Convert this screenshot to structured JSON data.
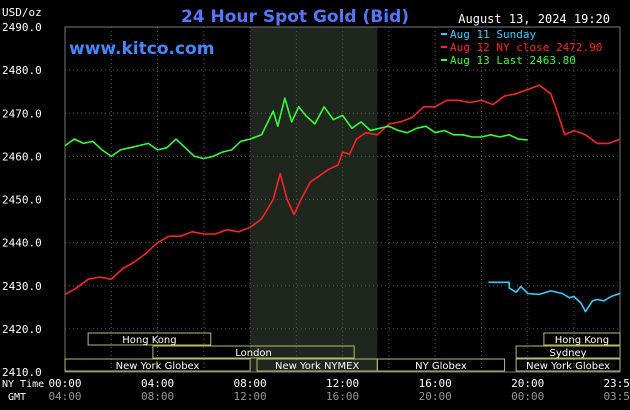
{
  "chart_data": {
    "type": "line",
    "title": "24 Hour Spot Gold (Bid)",
    "unit_label": "USD/oz",
    "timestamp": "August 13, 2024 19:20",
    "brand": "www.kitco.com",
    "ylim": [
      2410,
      2490
    ],
    "y_ticks": [
      "2490.0",
      "2480.0",
      "2470.0",
      "2460.0",
      "2450.0",
      "2440.0",
      "2430.0",
      "2420.0",
      "2410.0"
    ],
    "x_ticks_ny": [
      "00:00",
      "04:00",
      "08:00",
      "12:00",
      "16:00",
      "20:00",
      "23:59"
    ],
    "x_ticks_gmt": [
      "04:00",
      "08:00",
      "12:00",
      "16:00",
      "20:00",
      "00:00",
      "03:59"
    ],
    "ny_time_label": "NY Time",
    "gmt_label": "GMT",
    "grid": true,
    "legend_position": "top-right",
    "series": [
      {
        "name": "Aug 11 Sunday",
        "color": "#33ccff",
        "x": [
          18.3,
          19.2,
          19.2,
          19.5,
          19.7,
          20.0,
          20.5,
          21.0,
          21.5,
          21.8,
          22.0,
          22.3,
          22.5,
          22.8,
          23.0,
          23.3,
          23.6,
          23.99
        ],
        "y": [
          2430.8,
          2430.8,
          2429.5,
          2428.5,
          2429.8,
          2428.2,
          2428.0,
          2428.8,
          2428.2,
          2427.2,
          2427.5,
          2426.0,
          2424.0,
          2426.5,
          2426.8,
          2426.5,
          2427.5,
          2428.2
        ]
      },
      {
        "name": "Aug 12 NY close 2472.90",
        "color": "#ff2222",
        "x": [
          0.0,
          0.5,
          1.0,
          1.5,
          2.0,
          2.5,
          3.0,
          3.5,
          4.0,
          4.5,
          5.0,
          5.5,
          6.0,
          6.5,
          7.0,
          7.5,
          8.0,
          8.5,
          9.0,
          9.3,
          9.6,
          9.9,
          10.2,
          10.6,
          11.0,
          11.4,
          11.8,
          12.0,
          12.3,
          12.6,
          13.0,
          13.5,
          14.0,
          14.5,
          15.0,
          15.5,
          16.0,
          16.5,
          17.0,
          17.5,
          18.0,
          18.5,
          19.0,
          19.5,
          20.0,
          20.5,
          21.0,
          21.3,
          21.6,
          22.0,
          22.5,
          23.0,
          23.5,
          23.99
        ],
        "y": [
          2428.0,
          2429.5,
          2431.5,
          2432.0,
          2431.5,
          2434.0,
          2435.5,
          2437.5,
          2440.0,
          2441.5,
          2441.5,
          2442.5,
          2442.0,
          2442.0,
          2443.0,
          2442.5,
          2443.5,
          2445.5,
          2450.0,
          2456.0,
          2450.0,
          2446.5,
          2450.0,
          2454.0,
          2455.5,
          2457.0,
          2458.0,
          2461.0,
          2460.5,
          2464.0,
          2465.5,
          2465.0,
          2467.5,
          2468.0,
          2469.0,
          2471.5,
          2471.5,
          2473.0,
          2473.0,
          2472.5,
          2473.0,
          2472.0,
          2474.0,
          2474.5,
          2475.5,
          2476.5,
          2474.5,
          2470.0,
          2465.0,
          2466.0,
          2465.0,
          2463.0,
          2463.0,
          2464.0
        ]
      },
      {
        "name": "Aug 13 Last 2463.80",
        "color": "#33ff33",
        "x": [
          0.0,
          0.4,
          0.8,
          1.2,
          1.6,
          2.0,
          2.4,
          2.8,
          3.2,
          3.6,
          4.0,
          4.4,
          4.8,
          5.2,
          5.6,
          6.0,
          6.4,
          6.8,
          7.2,
          7.6,
          8.0,
          8.5,
          9.0,
          9.2,
          9.5,
          9.8,
          10.1,
          10.4,
          10.8,
          11.2,
          11.6,
          12.0,
          12.4,
          12.8,
          13.2,
          13.6,
          14.0,
          14.4,
          14.8,
          15.2,
          15.6,
          16.0,
          16.4,
          16.8,
          17.2,
          17.6,
          18.0,
          18.4,
          18.8,
          19.2,
          19.6,
          20.0
        ],
        "y": [
          2462.5,
          2464.0,
          2463.0,
          2463.5,
          2461.5,
          2460.0,
          2461.5,
          2462.0,
          2462.5,
          2463.0,
          2461.5,
          2462.0,
          2464.0,
          2462.0,
          2460.0,
          2459.5,
          2460.0,
          2461.0,
          2461.5,
          2463.5,
          2464.0,
          2465.0,
          2470.5,
          2467.0,
          2473.5,
          2468.0,
          2471.5,
          2469.5,
          2467.5,
          2471.5,
          2468.5,
          2469.5,
          2466.5,
          2468.0,
          2466.0,
          2466.5,
          2467.0,
          2466.0,
          2465.5,
          2466.5,
          2467.0,
          2465.5,
          2466.0,
          2465.0,
          2465.0,
          2464.5,
          2464.5,
          2465.0,
          2464.5,
          2465.0,
          2464.0,
          2463.8
        ]
      }
    ],
    "sessions": [
      {
        "name": "Hong Kong",
        "start": 1.0,
        "end": 6.3,
        "row": 0
      },
      {
        "name": "Hong Kong",
        "start": 20.7,
        "end": 23.99,
        "row": 0
      },
      {
        "name": "London",
        "start": 3.8,
        "end": 12.5,
        "row": 1
      },
      {
        "name": "Sydney",
        "start": 19.5,
        "end": 23.99,
        "row": 1
      },
      {
        "name": "New York Globex",
        "start": 0.0,
        "end": 8.0,
        "row": 2
      },
      {
        "name": "New York NYMEX",
        "start": 8.3,
        "end": 13.5,
        "row": 2
      },
      {
        "name": "NY Globex",
        "start": 13.5,
        "end": 19.0,
        "row": 2
      },
      {
        "name": "New York Globex",
        "start": 19.5,
        "end": 23.99,
        "row": 2
      }
    ],
    "highlight_range": [
      8.0,
      13.5
    ]
  }
}
